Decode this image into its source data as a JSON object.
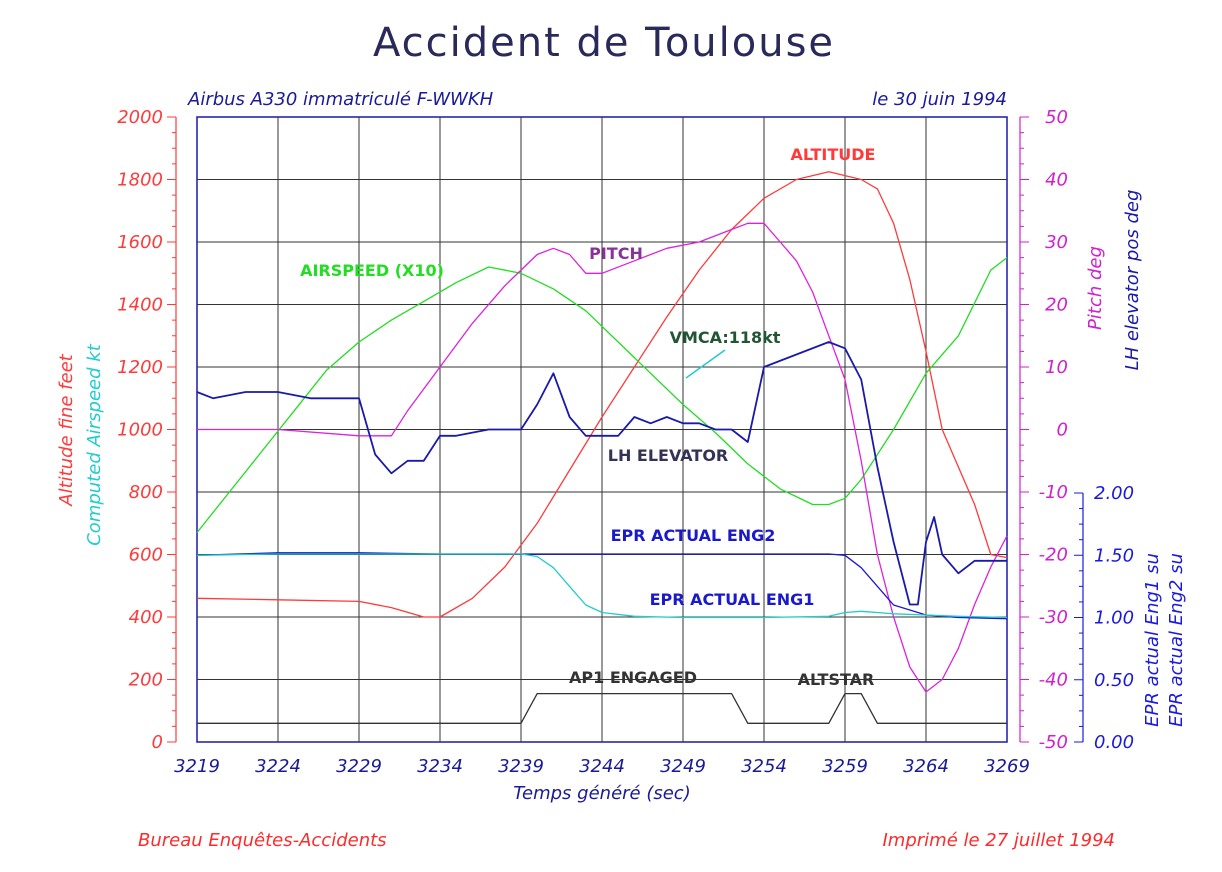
{
  "header": {
    "title": "Accident de Toulouse",
    "subtitle_left": "Airbus A330 immatriculé F-WWKH",
    "subtitle_right": "le 30 juin 1994"
  },
  "footer": {
    "left": "Bureau Enquêtes-Accidents",
    "right": "Imprimé le 27 juillet 1994"
  },
  "colors": {
    "altitude": "#ff3a3a",
    "airspeed": "#22dd22",
    "pitch": "#dd22dd",
    "elevator": "#1a1aaa",
    "epr1": "#1a1acc",
    "epr2": "#22cccc",
    "ap1": "#333333",
    "grid": "#333333",
    "frame": "#1a1aaa"
  },
  "chart_data": {
    "type": "line",
    "title": "Accident de Toulouse",
    "xlabel": "Temps généré (sec)",
    "xlim": [
      3219,
      3269
    ],
    "x_ticks": [
      "3219",
      "3224",
      "3229",
      "3234",
      "3239",
      "3244",
      "3249",
      "3254",
      "3259",
      "3264",
      "3269"
    ],
    "axes": {
      "left_outer": {
        "label": "Altitude fine feet",
        "range": [
          0,
          2000
        ],
        "ticks": [
          "0",
          "200",
          "400",
          "600",
          "800",
          "1000",
          "1200",
          "1400",
          "1600",
          "1800",
          "2000"
        ]
      },
      "left_inner": {
        "label": "Computed Airspeed kt",
        "range": [
          0,
          200
        ]
      },
      "right_upper": {
        "label": "Pitch deg",
        "range": [
          -50,
          50
        ],
        "ticks": [
          "-50",
          "-40",
          "-30",
          "-20",
          "-10",
          "0",
          "10",
          "20",
          "30",
          "40",
          "50"
        ]
      },
      "right_upper_2": {
        "label": "LH elevator pos deg",
        "range": [
          -50,
          50
        ]
      },
      "right_lower": {
        "label": "EPR actual Eng1 su",
        "label2": "EPR actual Eng2 su",
        "range": [
          0.0,
          2.0
        ],
        "ticks": [
          "0.00",
          "0.50",
          "1.00",
          "1.50",
          "2.00"
        ]
      }
    },
    "grid": true,
    "series": [
      {
        "key": "altitude",
        "name": "ALTITUDE",
        "axis": "left_outer",
        "x": [
          3219,
          3224,
          3229,
          3231,
          3233,
          3234,
          3236,
          3238,
          3240,
          3242,
          3244,
          3246,
          3248,
          3250,
          3252,
          3254,
          3256,
          3258,
          3260,
          3261,
          3262,
          3263,
          3264,
          3265,
          3266,
          3267,
          3268,
          3269
        ],
        "values": [
          460,
          455,
          450,
          430,
          400,
          400,
          460,
          560,
          700,
          870,
          1040,
          1200,
          1360,
          1510,
          1640,
          1740,
          1800,
          1825,
          1800,
          1770,
          1660,
          1480,
          1250,
          1000,
          880,
          760,
          600,
          590
        ]
      },
      {
        "key": "airspeed",
        "name": "AIRSPEED (X10)",
        "axis": "left_inner",
        "x": [
          3219,
          3221,
          3223,
          3225,
          3227,
          3229,
          3231,
          3233,
          3235,
          3237,
          3239,
          3241,
          3243,
          3245,
          3247,
          3249,
          3251,
          3253,
          3255,
          3257,
          3258,
          3259,
          3260,
          3262,
          3264,
          3266,
          3268,
          3269
        ],
        "values": [
          67,
          80,
          93,
          106,
          119,
          128,
          135,
          141,
          147,
          152,
          150,
          145,
          138,
          128,
          118,
          108,
          99,
          89,
          81,
          76,
          76,
          78,
          84,
          100,
          118,
          130,
          151,
          155
        ]
      },
      {
        "key": "pitch",
        "name": "PITCH",
        "axis": "right_upper",
        "x": [
          3219,
          3224,
          3229,
          3231,
          3232,
          3234,
          3236,
          3238,
          3240,
          3241,
          3242,
          3243,
          3244,
          3246,
          3248,
          3250,
          3252,
          3253,
          3254,
          3255,
          3256,
          3257,
          3258,
          3259,
          3260,
          3261,
          3262,
          3263,
          3264,
          3265,
          3266,
          3267,
          3268,
          3269
        ],
        "values": [
          0,
          0,
          -1,
          -1,
          3,
          10,
          17,
          23,
          28,
          29,
          28,
          25,
          25,
          27,
          29,
          30,
          32,
          33,
          33,
          30,
          27,
          22,
          15,
          8,
          -5,
          -20,
          -30,
          -38,
          -42,
          -40,
          -35,
          -28,
          -22,
          -17
        ]
      },
      {
        "key": "elevator",
        "name": "LH ELEVATOR",
        "axis": "right_upper_2",
        "x": [
          3219,
          3220,
          3222,
          3224,
          3226,
          3228,
          3229,
          3230,
          3231,
          3232,
          3233,
          3234,
          3235,
          3237,
          3239,
          3240,
          3241,
          3242,
          3243,
          3244,
          3245,
          3246,
          3247,
          3248,
          3249,
          3250,
          3251,
          3252,
          3253,
          3254,
          3256,
          3258,
          3259,
          3260,
          3261,
          3262,
          3263,
          3263.5,
          3264,
          3264.5,
          3265,
          3266,
          3267,
          3268,
          3269
        ],
        "values": [
          6,
          5,
          6,
          6,
          5,
          5,
          5,
          -4,
          -7,
          -5,
          -5,
          -1,
          -1,
          0,
          0,
          4,
          9,
          2,
          -1,
          -1,
          -1,
          2,
          1,
          2,
          1,
          1,
          0,
          0,
          -2,
          10,
          12,
          14,
          13,
          8,
          -6,
          -18,
          -28,
          -28,
          -18,
          -14,
          -20,
          -23,
          -21,
          -21,
          -21
        ]
      },
      {
        "key": "epr1",
        "name": "EPR ACTUAL ENG1",
        "axis": "right_lower",
        "x": [
          3219,
          3224,
          3229,
          3234,
          3239,
          3244,
          3249,
          3254,
          3258,
          3259,
          3260,
          3262,
          3264,
          3266,
          3269
        ],
        "values": [
          1.5,
          1.52,
          1.52,
          1.51,
          1.51,
          1.51,
          1.51,
          1.51,
          1.51,
          1.5,
          1.4,
          1.1,
          1.02,
          1.0,
          0.99
        ]
      },
      {
        "key": "epr2",
        "name": "EPR ACTUAL ENG2",
        "axis": "right_lower",
        "x": [
          3219,
          3224,
          3229,
          3234,
          3239,
          3240,
          3241,
          3242,
          3243,
          3244,
          3246,
          3249,
          3254,
          3258,
          3259,
          3260,
          3262,
          3264,
          3266,
          3269
        ],
        "values": [
          1.5,
          1.51,
          1.51,
          1.51,
          1.51,
          1.49,
          1.4,
          1.25,
          1.1,
          1.04,
          1.01,
          1.0,
          1.0,
          1.01,
          1.04,
          1.05,
          1.03,
          1.02,
          1.01,
          1.0
        ]
      },
      {
        "key": "ap1",
        "name": "AP1 ENGAGED",
        "axis": "left_outer",
        "x": [
          3219,
          3239,
          3240,
          3252,
          3253,
          3258,
          3259,
          3260,
          3261,
          3269
        ],
        "values": [
          60,
          60,
          155,
          155,
          60,
          60,
          155,
          155,
          60,
          60
        ]
      }
    ],
    "annotations": [
      {
        "key": "altitude",
        "text": "ALTITUDE"
      },
      {
        "key": "airspeed",
        "text": "AIRSPEED (X10)"
      },
      {
        "key": "pitch",
        "text": "PITCH"
      },
      {
        "key": "elevator",
        "text": "LH ELEVATOR"
      },
      {
        "key": "epr2",
        "text": "EPR ACTUAL ENG2"
      },
      {
        "key": "epr1",
        "text": "EPR ACTUAL ENG1"
      },
      {
        "key": "ap1",
        "text": "AP1 ENGAGED"
      },
      {
        "key": "ap1",
        "text": "ALTSTAR"
      },
      {
        "key": "vmca",
        "text": "VMCA:118kt"
      }
    ]
  }
}
